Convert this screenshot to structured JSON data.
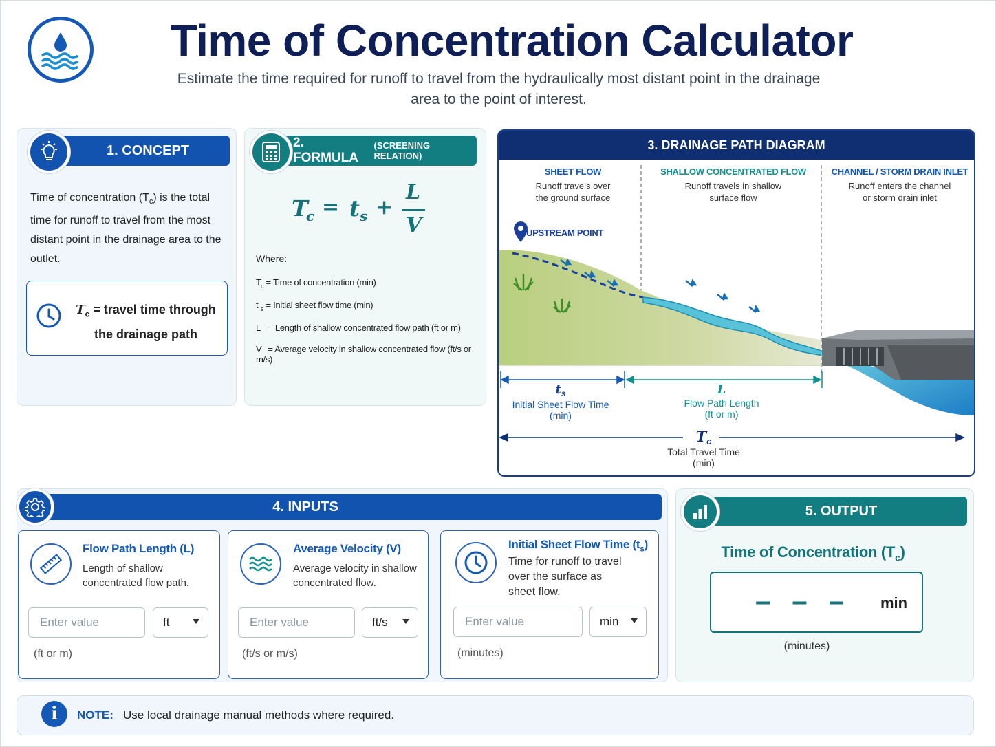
{
  "header": {
    "title": "Time of Concentration Calculator",
    "subtitle": "Estimate the time required for runoff to travel from the hydraulically most distant point in the drainage area to the point of interest.",
    "logo_icon": "water-drop-waves-icon"
  },
  "concept": {
    "heading": "1. CONCEPT",
    "icon": "lightbulb-icon",
    "text_pre": "Time of concentration (T",
    "text_sub": "c",
    "text_post": ") is the total time for runoff to travel from the most distant point in the drainage area to the outlet.",
    "def_symbol": "T",
    "def_sub": "c",
    "def_text": " = travel time through the drainage path",
    "def_icon": "clock-icon"
  },
  "formula": {
    "heading": "2. FORMULA",
    "heading_note": "(SCREENING RELATION)",
    "icon": "calculator-icon",
    "lhs": "T",
    "lhs_sub": "c",
    "eq": "=",
    "t": "t",
    "t_sub": "s",
    "plus": "+",
    "numerator": "L",
    "denominator": "V",
    "where_label": "Where:",
    "definitions": [
      {
        "sym": "T",
        "sub": "c",
        "eq": "=",
        "text": "Time of concentration (min)"
      },
      {
        "sym": "t",
        "sub": "s",
        "eq": "=",
        "text": "Initial sheet flow time (min)"
      },
      {
        "sym": "L",
        "sub": "",
        "eq": "=",
        "text": "Length of shallow concentrated flow path (ft or m)"
      },
      {
        "sym": "V",
        "sub": "",
        "eq": "=",
        "text": "Average velocity in shallow concentrated flow (ft/s or m/s)"
      }
    ]
  },
  "diagram": {
    "heading": "3. DRAINAGE PATH DIAGRAM",
    "zones": [
      {
        "title": "SHEET FLOW",
        "desc1": "Runoff travels over",
        "desc2": "the ground surface"
      },
      {
        "title": "SHALLOW CONCENTRATED FLOW",
        "desc1": "Runoff travels in shallow",
        "desc2": "surface flow"
      },
      {
        "title": "CHANNEL / STORM DRAIN INLET",
        "desc1": "Runoff enters the channel",
        "desc2": "or storm drain inlet"
      }
    ],
    "upstream_label": "UPSTREAM POINT",
    "ts_symbol": "t",
    "ts_sub": "s",
    "ts_label1": "Initial Sheet Flow Time",
    "ts_label2": "(min)",
    "L_symbol": "L",
    "L_label1": "Flow Path Length",
    "L_label2": "(ft or m)",
    "tc_symbol": "T",
    "tc_sub": "c",
    "tc_label1": "Total Travel Time",
    "tc_label2": "(min)",
    "colors": {
      "sheet": "#1559b6",
      "concentrated": "#14908f",
      "total": "#0f2f72"
    }
  },
  "inputs": {
    "heading": "4. INPUTS",
    "icon": "gear-icon",
    "fields": [
      {
        "title": "Flow Path Length (L)",
        "desc1": "Length of shallow",
        "desc2": "concentrated flow path.",
        "desc3": "",
        "placeholder": "Enter value",
        "unit": "ft",
        "hint": "(ft or m)",
        "icon": "ruler-icon"
      },
      {
        "title": "Average Velocity (V)",
        "desc1": "Average velocity in shallow",
        "desc2": "concentrated flow.",
        "desc3": "",
        "placeholder": "Enter value",
        "unit": "ft/s",
        "hint": "(ft/s or m/s)",
        "icon": "water-waves-icon"
      },
      {
        "title": "Initial Sheet Flow Time (t",
        "title_sub": "s",
        "title_end": ")",
        "desc1": "Time for runoff to travel",
        "desc2": "over the surface as",
        "desc3": "sheet flow.",
        "placeholder": "Enter value",
        "unit": "min",
        "hint": "(minutes)",
        "icon": "clock-icon"
      }
    ]
  },
  "output": {
    "heading": "5. OUTPUT",
    "icon": "bar-chart-icon",
    "label": "Time of Concentration (T",
    "label_sub": "c",
    "label_end": ")",
    "value": "– – –",
    "unit": "min",
    "hint": "(minutes)"
  },
  "note": {
    "label": "NOTE:",
    "text": "Use local drainage manual methods where required.",
    "icon": "info-icon"
  },
  "colors": {
    "blue": "#1353b0",
    "teal": "#127e82",
    "navy": "#0e1f57"
  }
}
